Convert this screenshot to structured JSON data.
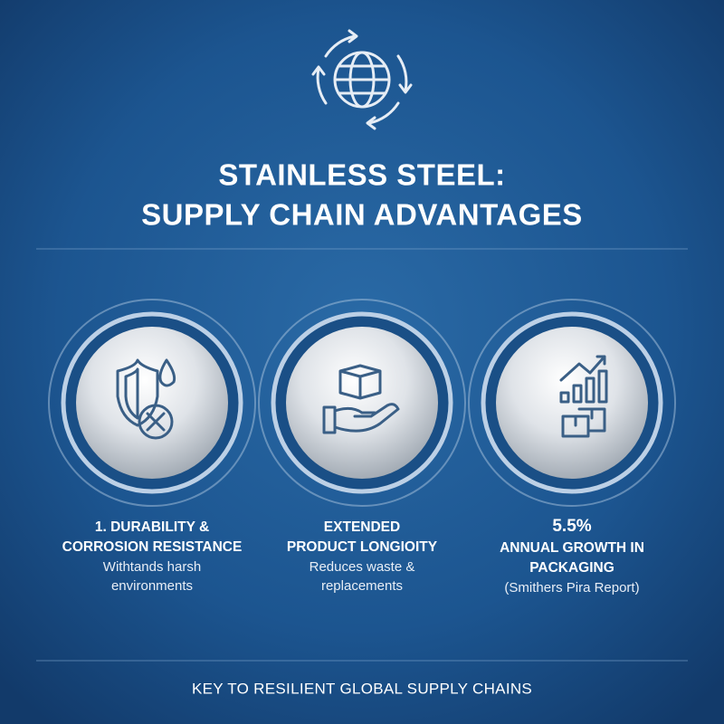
{
  "header": {
    "title": [
      "STAINLESS STEEL:",
      "SUPPLY CHAIN ADVANTAGES"
    ]
  },
  "cards": [
    {
      "heading": [
        "1. DURABILITY &",
        "CORROSION RESISTANCE"
      ],
      "text": [
        "Withtands harsh",
        "environments"
      ]
    },
    {
      "heading": [
        "EXTENDED",
        "PRODUCT LONGIOITY"
      ],
      "text": [
        "Reduces waste &",
        "replacements"
      ]
    },
    {
      "stat": "5.5%",
      "heading": [
        "ANNUAL GROWTH IN",
        "PACKAGING"
      ],
      "text": [
        "(Smithers Pira Report)"
      ]
    }
  ],
  "footer": {
    "text": "KEY TO RESILIENT GLOBAL SUPPLY CHAINS"
  }
}
